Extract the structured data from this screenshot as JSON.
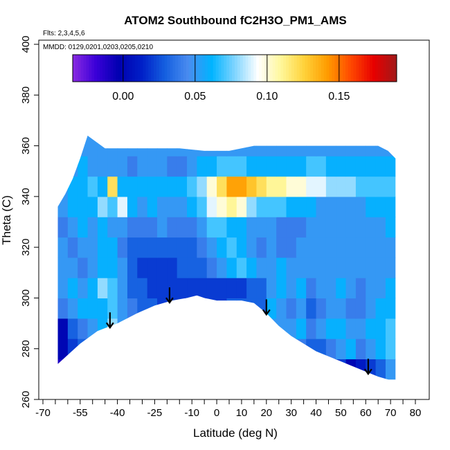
{
  "chart_data": {
    "type": "heatmap",
    "title": "ATOM2 Southbound fC2H3O_PM1_AMS",
    "subtitle_flights": "Flts: 2,3,4,5,6",
    "subtitle_dates": "MMDD: 0129,0201,0203,0205,0210",
    "xlabel": "Latitude (deg N)",
    "ylabel": "Theta (C)",
    "xlim": [
      -70,
      80
    ],
    "ylim": [
      260,
      400
    ],
    "x_tick_labels": [
      "-70",
      "-55",
      "-40",
      "-25",
      "-10",
      "0",
      "10",
      "20",
      "30",
      "40",
      "50",
      "60",
      "70",
      "80"
    ],
    "x_tick_values": [
      -70,
      -55,
      -40,
      -25,
      -10,
      0,
      10,
      20,
      30,
      40,
      50,
      60,
      70,
      80
    ],
    "x_minor_ticks": [
      -65,
      -60,
      -50,
      -45,
      -35,
      -30,
      -20,
      -15,
      -5,
      5,
      15,
      25,
      35,
      45,
      55,
      65,
      75
    ],
    "y_ticks": [
      "260",
      "280",
      "300",
      "320",
      "340",
      "360",
      "380",
      "400"
    ],
    "colorbar": {
      "range": [
        -0.035,
        0.19
      ],
      "ticks": [
        "0.00",
        "0.05",
        "0.10",
        "0.15"
      ],
      "tick_values": [
        0.0,
        0.05,
        0.1,
        0.15
      ],
      "colors": [
        "#8a2be2",
        "#3a00d8",
        "#0000b0",
        "#0020c8",
        "#1560e0",
        "#4a8cf0",
        "#00b4ff",
        "#7fd4ff",
        "#ffffff",
        "#fff79a",
        "#ffd23a",
        "#ff9c00",
        "#ff4a00",
        "#e80000",
        "#a01a1a"
      ]
    },
    "lower_boundary": {
      "lat": [
        -64,
        -55,
        -48,
        -40,
        -32,
        -25,
        -18,
        -12,
        -8,
        -5,
        0,
        5,
        10,
        15,
        20,
        25,
        30,
        35,
        40,
        45,
        50,
        55,
        60,
        65,
        72
      ],
      "theta": [
        274,
        282,
        287,
        290,
        294,
        297,
        299,
        300,
        301,
        300,
        299,
        299,
        299,
        298,
        294,
        289,
        285,
        282,
        279,
        277,
        275,
        273,
        271,
        269,
        267
      ]
    },
    "upper_boundary": {
      "lat": [
        -64,
        -61,
        -58,
        -55,
        -52,
        -45,
        -35,
        -25,
        -15,
        -5,
        5,
        15,
        25,
        35,
        45,
        55,
        65,
        69,
        72
      ],
      "theta": [
        336,
        341,
        347,
        355,
        364,
        359,
        359,
        359,
        359,
        358,
        358,
        360,
        360,
        360,
        360,
        360,
        360,
        358,
        355
      ]
    },
    "heatmap_values": {
      "lat": [
        -62,
        -58,
        -54,
        -50,
        -46,
        -42,
        -38,
        -34,
        -30,
        -26,
        -22,
        -18,
        -14,
        -10,
        -6,
        -2,
        2,
        6,
        10,
        14,
        18,
        22,
        26,
        30,
        34,
        38,
        42,
        46,
        50,
        54,
        58,
        62,
        66,
        70
      ],
      "theta_bins": [
        {
          "theta": [
            268,
            276
          ],
          "values": [
            -0.01,
            -0.01,
            -0.01,
            -0.01,
            -0.01,
            -0.01,
            -0.01,
            -0.01,
            -0.01,
            -0.01,
            -0.01,
            -0.01,
            -0.01,
            -0.01,
            -0.01,
            -0.01,
            -0.01,
            -0.01,
            -0.01,
            -0.01,
            -0.01,
            -0.01,
            -0.01,
            -0.01,
            -0.01,
            -0.01,
            0.01,
            0.01,
            0.02,
            0.0,
            0.01,
            0.02,
            0.03,
            0.05
          ]
        },
        {
          "theta": [
            276,
            284
          ],
          "values": [
            0.0,
            0.02,
            0.03,
            0.04,
            0.03,
            0.03,
            0.03,
            0.03,
            0.03,
            0.03,
            0.03,
            0.03,
            0.03,
            0.03,
            0.03,
            0.03,
            0.03,
            0.03,
            0.03,
            0.03,
            0.03,
            0.03,
            0.04,
            0.05,
            0.04,
            0.03,
            0.03,
            0.04,
            0.05,
            0.06,
            0.04,
            0.05,
            0.06,
            0.07
          ]
        },
        {
          "theta": [
            284,
            292
          ],
          "values": [
            0.0,
            0.03,
            0.04,
            0.05,
            0.06,
            0.08,
            0.05,
            0.04,
            0.04,
            0.04,
            0.04,
            0.04,
            0.04,
            0.04,
            0.04,
            0.04,
            0.04,
            0.04,
            0.04,
            0.04,
            0.04,
            0.05,
            0.05,
            0.05,
            0.06,
            0.04,
            0.05,
            0.06,
            0.06,
            0.05,
            0.05,
            0.06,
            0.06,
            0.07
          ]
        },
        {
          "theta": [
            292,
            300
          ],
          "values": [
            0.04,
            0.05,
            0.06,
            0.06,
            0.06,
            0.07,
            0.05,
            0.04,
            0.03,
            0.03,
            0.02,
            0.02,
            0.02,
            0.02,
            0.02,
            0.02,
            0.02,
            0.03,
            0.03,
            0.03,
            0.03,
            0.06,
            0.05,
            0.04,
            0.05,
            0.03,
            0.04,
            0.05,
            0.05,
            0.04,
            0.04,
            0.05,
            0.06,
            0.06
          ]
        },
        {
          "theta": [
            300,
            308
          ],
          "values": [
            0.05,
            0.06,
            0.05,
            0.06,
            0.08,
            0.07,
            0.05,
            0.03,
            0.03,
            0.02,
            0.02,
            0.02,
            0.02,
            0.02,
            0.02,
            0.02,
            0.02,
            0.02,
            0.02,
            0.03,
            0.03,
            0.05,
            0.06,
            0.05,
            0.06,
            0.04,
            0.05,
            0.05,
            0.06,
            0.05,
            0.04,
            0.05,
            0.05,
            0.06
          ]
        },
        {
          "theta": [
            308,
            316
          ],
          "values": [
            0.05,
            0.05,
            0.04,
            0.05,
            0.06,
            0.06,
            0.05,
            0.03,
            0.02,
            0.02,
            0.02,
            0.02,
            0.03,
            0.03,
            0.03,
            0.04,
            0.05,
            0.06,
            0.07,
            0.06,
            0.05,
            0.05,
            0.06,
            0.05,
            0.05,
            0.05,
            0.05,
            0.05,
            0.05,
            0.05,
            0.05,
            0.05,
            0.05,
            0.05
          ]
        },
        {
          "theta": [
            316,
            324
          ],
          "values": [
            0.05,
            0.04,
            0.05,
            0.05,
            0.06,
            0.06,
            0.04,
            0.03,
            0.03,
            0.03,
            0.03,
            0.03,
            0.03,
            0.03,
            0.04,
            0.05,
            0.06,
            0.07,
            0.06,
            0.05,
            0.04,
            0.05,
            0.04,
            0.04,
            0.05,
            0.05,
            0.05,
            0.05,
            0.05,
            0.05,
            0.05,
            0.05,
            0.05,
            0.05
          ]
        },
        {
          "theta": [
            324,
            332
          ],
          "values": [
            0.04,
            0.05,
            0.06,
            0.05,
            0.06,
            0.05,
            0.05,
            0.04,
            0.04,
            0.04,
            0.05,
            0.04,
            0.04,
            0.04,
            0.05,
            0.07,
            0.07,
            0.06,
            0.06,
            0.05,
            0.05,
            0.05,
            0.04,
            0.04,
            0.04,
            0.05,
            0.05,
            0.05,
            0.05,
            0.05,
            0.05,
            0.05,
            0.05,
            0.06
          ]
        },
        {
          "theta": [
            332,
            340
          ],
          "values": [
            0.05,
            0.06,
            0.06,
            0.06,
            0.08,
            0.07,
            0.09,
            0.06,
            0.05,
            0.06,
            0.05,
            0.05,
            0.05,
            0.06,
            0.07,
            0.09,
            0.1,
            0.11,
            0.1,
            0.08,
            0.07,
            0.07,
            0.07,
            0.06,
            0.06,
            0.06,
            0.05,
            0.05,
            0.05,
            0.05,
            0.05,
            0.06,
            0.06,
            0.06
          ]
        },
        {
          "theta": [
            340,
            348
          ],
          "values": [
            0.05,
            0.06,
            0.06,
            0.07,
            0.06,
            0.12,
            0.06,
            0.06,
            0.06,
            0.06,
            0.06,
            0.06,
            0.06,
            0.07,
            0.08,
            0.1,
            0.12,
            0.14,
            0.14,
            0.13,
            0.12,
            0.11,
            0.11,
            0.1,
            0.1,
            0.09,
            0.09,
            0.08,
            0.08,
            0.08,
            0.07,
            0.07,
            0.07,
            0.07
          ]
        },
        {
          "theta": [
            348,
            356
          ],
          "values": [
            0.05,
            0.05,
            0.06,
            0.05,
            0.05,
            0.05,
            0.05,
            0.04,
            0.05,
            0.05,
            0.05,
            0.04,
            0.04,
            0.05,
            0.06,
            0.06,
            0.07,
            0.07,
            0.07,
            0.06,
            0.06,
            0.06,
            0.06,
            0.06,
            0.06,
            0.07,
            0.07,
            0.06,
            0.06,
            0.06,
            0.06,
            0.06,
            0.06,
            0.06
          ]
        },
        {
          "theta": [
            356,
            364
          ],
          "values": [
            0.04,
            0.05,
            0.05,
            0.05,
            0.05,
            0.05,
            0.05,
            0.05,
            0.05,
            0.05,
            0.05,
            0.05,
            0.05,
            0.05,
            0.05,
            0.05,
            0.05,
            0.05,
            0.05,
            0.05,
            0.05,
            0.05,
            0.05,
            0.05,
            0.05,
            0.05,
            0.05,
            0.05,
            0.05,
            0.05,
            0.05,
            0.05,
            0.05,
            0.05
          ]
        }
      ]
    },
    "arrows_lat": [
      -43,
      -19,
      20,
      61
    ]
  }
}
